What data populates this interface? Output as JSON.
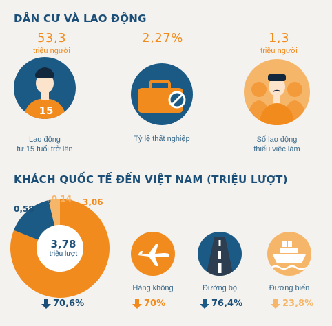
{
  "section1": {
    "title": "DÂN CƯ VÀ LAO ĐỘNG",
    "items": [
      {
        "value": "53,3",
        "unit": "triệu người",
        "caption_line1": "Lao động",
        "caption_line2": "từ 15 tuổi trở lên",
        "shirt_number": "15"
      },
      {
        "value": "2,27%",
        "caption": "Tỷ lệ thất nghiệp"
      },
      {
        "value": "1,3",
        "unit": "triệu người",
        "caption_line1": "Số lao động",
        "caption_line2": "thiếu việc làm"
      }
    ]
  },
  "section2": {
    "title": "KHÁCH QUỐC TẾ ĐẾN VIỆT NAM (TRIỆU LƯỢT)",
    "donut": {
      "total_value": "3,78",
      "total_unit": "triệu lượt",
      "label_blue": "0,58",
      "label_sep": ",",
      "label_light": "0,14",
      "label_orange": "3,06",
      "change": "70,6%",
      "change_direction": "down"
    },
    "transport": [
      {
        "label": "Hàng không",
        "change": "70%",
        "icon": "airplane-icon",
        "color": "#f28b1e",
        "direction": "down"
      },
      {
        "label": "Đường bộ",
        "change": "76,4%",
        "icon": "road-icon",
        "color": "#1c5a86",
        "direction": "down"
      },
      {
        "label": "Đường biển",
        "change": "23,8%",
        "icon": "ship-icon",
        "color": "#f6b66a",
        "direction": "down"
      }
    ]
  },
  "chart_data": {
    "type": "pie",
    "categories": [
      "Đường hàng không",
      "Đường bộ",
      "Đường biển"
    ],
    "values": [
      3.06,
      0.58,
      0.14
    ],
    "title": "KHÁCH QUỐC TẾ ĐẾN VIỆT NAM (TRIỆU LƯỢT)",
    "total": 3.78,
    "colors": [
      "#f28b1e",
      "#1c5a86",
      "#f6b66a"
    ]
  },
  "colors": {
    "orange": "#f28b1e",
    "navy": "#1c4f78",
    "light_orange": "#f6b66a",
    "background": "#f4f2ee"
  }
}
